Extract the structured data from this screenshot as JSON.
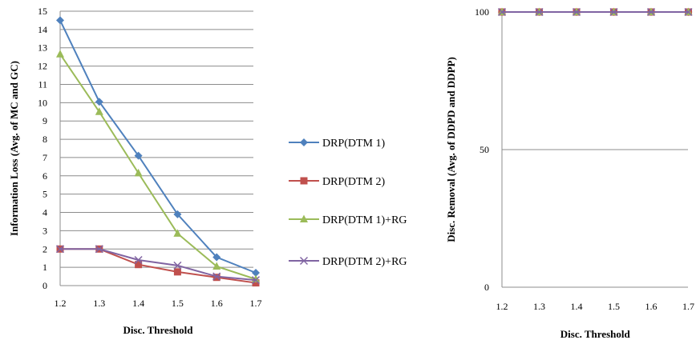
{
  "chart_data": [
    {
      "type": "line",
      "x": [
        1.2,
        1.3,
        1.4,
        1.5,
        1.6,
        1.7
      ],
      "xlabel": "Disc. Threshold",
      "ylabel": "Information Loss (Avg. of MC and GC)",
      "ylim": [
        0,
        15
      ],
      "yticks": [
        0,
        1,
        2,
        3,
        4,
        5,
        6,
        7,
        8,
        9,
        10,
        11,
        12,
        13,
        14,
        15
      ],
      "grid": true,
      "legend": "right",
      "series": [
        {
          "name": "DRP(DTM 1)",
          "marker": "diamond",
          "color": "#4f81bd",
          "values": [
            14.5,
            10.05,
            7.1,
            3.9,
            1.55,
            0.7
          ]
        },
        {
          "name": "DRP(DTM 2)",
          "marker": "square",
          "color": "#c0504d",
          "values": [
            2.0,
            2.0,
            1.15,
            0.75,
            0.45,
            0.15
          ]
        },
        {
          "name": "DRP(DTM 1)+RG",
          "marker": "triangle",
          "color": "#9bbb59",
          "values": [
            12.65,
            9.5,
            6.15,
            2.85,
            1.05,
            0.35
          ]
        },
        {
          "name": "DRP(DTM 2)+RG",
          "marker": "x",
          "color": "#8064a2",
          "values": [
            2.0,
            2.0,
            1.4,
            1.1,
            0.5,
            0.3
          ]
        }
      ]
    },
    {
      "type": "line",
      "x": [
        1.2,
        1.3,
        1.4,
        1.5,
        1.6,
        1.7
      ],
      "xlabel": "Disc. Threshold",
      "ylabel": "Disc. Removal (Avg. of DDPD and DDPP)",
      "ylim": [
        0,
        100
      ],
      "yticks": [
        0,
        50,
        100
      ],
      "grid": true,
      "series": [
        {
          "marker": "diamond",
          "color": "#4f81bd",
          "values": [
            100,
            100,
            100,
            100,
            100,
            100
          ]
        },
        {
          "marker": "square",
          "color": "#c0504d",
          "values": [
            100,
            100,
            100,
            100,
            100,
            100
          ]
        },
        {
          "marker": "triangle",
          "color": "#9bbb59",
          "values": [
            100,
            100,
            100,
            100,
            100,
            100
          ]
        },
        {
          "marker": "x",
          "color": "#8064a2",
          "values": [
            100,
            100,
            100,
            100,
            100,
            100
          ]
        }
      ]
    }
  ]
}
